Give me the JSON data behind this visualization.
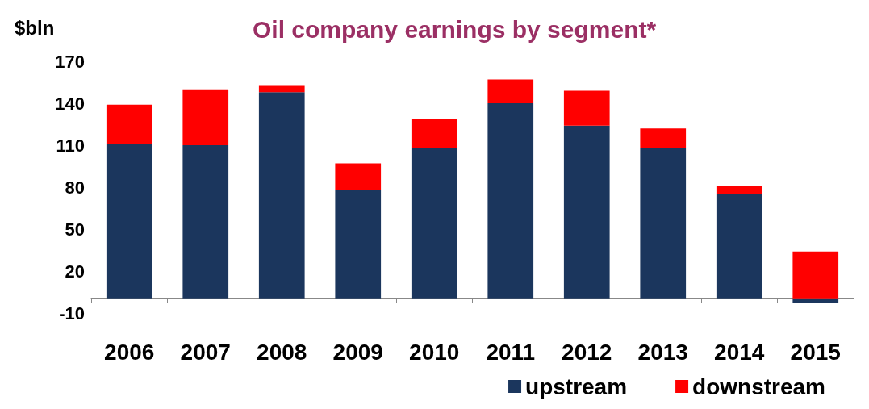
{
  "chart_data": {
    "type": "bar",
    "title": "Oil company earnings by segment*",
    "ylabel": "$bln",
    "categories": [
      "2006",
      "2007",
      "2008",
      "2009",
      "2010",
      "2011",
      "2012",
      "2013",
      "2014",
      "2015"
    ],
    "series": [
      {
        "name": "upstream",
        "color": "#1b365d",
        "values": [
          111,
          110,
          148,
          78,
          108,
          140,
          124,
          108,
          75,
          -3
        ]
      },
      {
        "name": "downstream",
        "color": "#ff0000",
        "values": [
          28,
          40,
          5,
          19,
          21,
          17,
          25,
          14,
          6,
          34
        ]
      }
    ],
    "stacked": true,
    "ylim": [
      -10,
      170
    ],
    "yticks": [
      -10,
      20,
      50,
      80,
      110,
      140,
      170
    ],
    "grid": false,
    "legend": "bottom right"
  }
}
